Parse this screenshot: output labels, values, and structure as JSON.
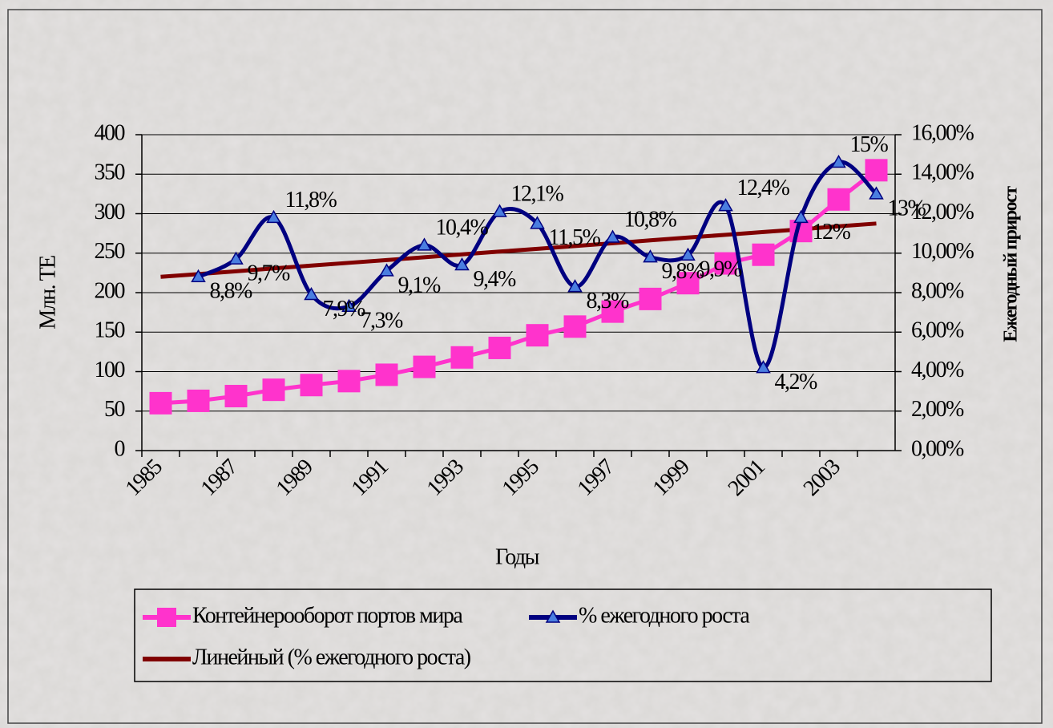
{
  "chart_data": {
    "type": "line",
    "xlabel": "Годы",
    "ylabel": "Млн. ТЕ",
    "y2label": "Ежегодный прирост",
    "categories": [
      "1985",
      null,
      "1987",
      null,
      "1989",
      null,
      "1991",
      null,
      "1993",
      null,
      "1995",
      null,
      "1997",
      null,
      "1999",
      null,
      "2001",
      null,
      "2003",
      null
    ],
    "ylim": [
      0,
      400
    ],
    "yticks": [
      0,
      50,
      100,
      150,
      200,
      250,
      300,
      350,
      400
    ],
    "y2lim": [
      0,
      16
    ],
    "y2ticks": [
      {
        "value": 0,
        "label": "0,00%"
      },
      {
        "value": 2,
        "label": "2,00%"
      },
      {
        "value": 4,
        "label": "4,00%"
      },
      {
        "value": 6,
        "label": "6,00%"
      },
      {
        "value": 8,
        "label": "8,00%"
      },
      {
        "value": 10,
        "label": "10,00%"
      },
      {
        "value": 12,
        "label": "12,00%"
      },
      {
        "value": 14,
        "label": "14,00%"
      },
      {
        "value": 16,
        "label": "16,00%"
      }
    ],
    "grid": true,
    "series": [
      {
        "name": "Контейнерооборот портов мира",
        "color": "#ff33cc",
        "marker": "square",
        "values": [
          60,
          63,
          69,
          77,
          83,
          88,
          96,
          106,
          118,
          130,
          146,
          157,
          176,
          192,
          212,
          237,
          248,
          278,
          318,
          355
        ]
      },
      {
        "name": "% ежегодного роста",
        "color": "#000080",
        "marker": "triangle",
        "axis": "y2",
        "smooth": true,
        "values": [
          null,
          8.8,
          9.7,
          11.8,
          7.9,
          7.3,
          9.1,
          10.4,
          9.4,
          12.1,
          11.5,
          8.3,
          10.8,
          9.8,
          9.9,
          12.4,
          4.2,
          11.8,
          14.6,
          13
        ],
        "value_labels": [
          null,
          "8,8%",
          "9,7%",
          "11,8%",
          "7,9%",
          "7,3%",
          "9,1%",
          "10,4%",
          "9,4%",
          "12,1%",
          "11,5%",
          "8,3%",
          "10,8%",
          "9,8%",
          "9,9%",
          "12,4%",
          "4,2%",
          "12%",
          "15%",
          "13%"
        ]
      },
      {
        "name": "Линейный (% ежегодного роста)",
        "color": "#800000",
        "axis": "y2",
        "values": [
          8.8,
          8.94,
          9.08,
          9.23,
          9.37,
          9.51,
          9.65,
          9.79,
          9.94,
          10.08,
          10.22,
          10.36,
          10.5,
          10.65,
          10.79,
          10.93,
          11.07,
          11.21,
          11.36,
          11.5
        ]
      }
    ]
  }
}
